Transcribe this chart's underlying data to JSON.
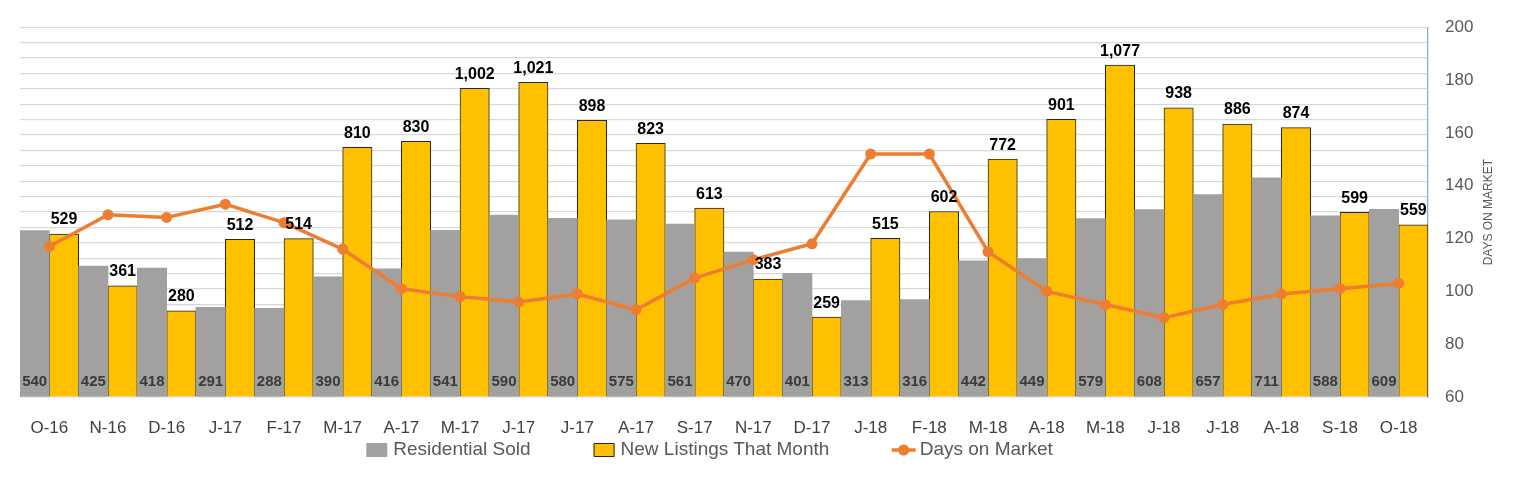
{
  "chart_data": {
    "type": "bar",
    "categories": [
      "O-16",
      "N-16",
      "D-16",
      "J-17",
      "F-17",
      "M-17",
      "A-17",
      "M-17",
      "J-17",
      "J-17",
      "A-17",
      "S-17",
      "N-17",
      "D-17",
      "J-18",
      "F-18",
      "M-18",
      "A-18",
      "M-18",
      "J-18",
      "J-18",
      "A-18",
      "S-18",
      "O-18"
    ],
    "series": [
      {
        "name": "Residential Sold",
        "color": "#a3a0a0",
        "values": [
          540,
          425,
          418,
          291,
          288,
          390,
          416,
          541,
          590,
          580,
          575,
          561,
          470,
          401,
          313,
          316,
          442,
          449,
          579,
          608,
          657,
          711,
          588,
          609
        ],
        "value_labels": [
          "540",
          "425",
          "418",
          "291",
          "288",
          "390",
          "416",
          "541",
          "590",
          "580",
          "575",
          "561",
          "470",
          "401",
          "313",
          "316",
          "442",
          "449",
          "579",
          "608",
          "657",
          "711",
          "588",
          "609"
        ]
      },
      {
        "name": "New Listings That Month",
        "color": "#ffc000",
        "values": [
          529,
          361,
          280,
          512,
          514,
          810,
          830,
          1002,
          1021,
          898,
          823,
          613,
          383,
          259,
          515,
          602,
          772,
          901,
          1077,
          938,
          886,
          874,
          599,
          559
        ],
        "value_labels": [
          "529",
          "361",
          "280",
          "512",
          "514",
          "810",
          "830",
          "1,002",
          "1,021",
          "898",
          "823",
          "613",
          "383",
          "259",
          "515",
          "602",
          "772",
          "901",
          "1,077",
          "938",
          "886",
          "874",
          "599",
          "559"
        ]
      },
      {
        "name": "Days on Market",
        "type": "line",
        "axis": "y2",
        "color": "#ed7d31",
        "values": [
          117,
          129,
          128,
          133,
          126,
          116,
          101,
          98,
          96,
          99,
          93,
          105,
          112,
          118,
          152,
          152,
          115,
          100,
          95,
          90,
          95,
          99,
          101,
          103
        ]
      }
    ],
    "ylim": [
      0,
      1200
    ],
    "y2lim": [
      60,
      200
    ],
    "y2ticks": [
      60,
      80,
      100,
      120,
      140,
      160,
      180,
      200
    ],
    "y2label": "DAYS ON MARKET",
    "grid": "y",
    "legend": "bottom",
    "marker": "circle"
  }
}
